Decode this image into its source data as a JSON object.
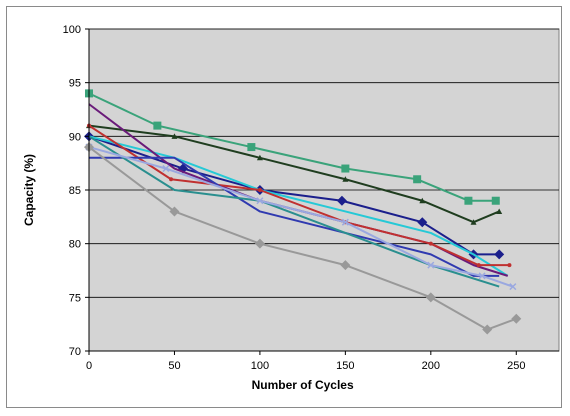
{
  "chart_data": {
    "type": "line",
    "title": "",
    "xlabel": "Number of Cycles",
    "ylabel": "Capacity (%)",
    "xlim": [
      0,
      275
    ],
    "ylim": [
      70,
      100
    ],
    "xticks": [
      0,
      50,
      100,
      150,
      200,
      250
    ],
    "yticks": [
      70,
      75,
      80,
      85,
      90,
      95,
      100
    ],
    "grid": true,
    "legend": "none",
    "plot_background": "#d4d4d4",
    "series": [
      {
        "color": "#3aa37a",
        "marker": "square",
        "points": [
          [
            0,
            94
          ],
          [
            40,
            91
          ],
          [
            95,
            89
          ],
          [
            150,
            87
          ],
          [
            192,
            86
          ],
          [
            222,
            84
          ],
          [
            238,
            84
          ]
        ]
      },
      {
        "color": "#1f3d1f",
        "marker": "triangle",
        "points": [
          [
            0,
            91
          ],
          [
            50,
            90
          ],
          [
            100,
            88
          ],
          [
            150,
            86
          ],
          [
            195,
            84
          ],
          [
            225,
            82
          ],
          [
            240,
            83
          ]
        ]
      },
      {
        "color": "#1b1f8c",
        "marker": "diamond",
        "points": [
          [
            0,
            90
          ],
          [
            55,
            87
          ],
          [
            100,
            85
          ],
          [
            148,
            84
          ],
          [
            195,
            82
          ],
          [
            225,
            79
          ],
          [
            240,
            79
          ]
        ]
      },
      {
        "color": "#26c9d6",
        "marker": "none",
        "points": [
          [
            0,
            90
          ],
          [
            50,
            88
          ],
          [
            100,
            85
          ],
          [
            150,
            83
          ],
          [
            200,
            81
          ],
          [
            225,
            79
          ],
          [
            245,
            77
          ]
        ]
      },
      {
        "color": "#6a1b7a",
        "marker": "none",
        "points": [
          [
            0,
            93
          ],
          [
            50,
            87
          ],
          [
            100,
            84
          ],
          [
            150,
            82
          ],
          [
            200,
            80
          ],
          [
            225,
            78
          ],
          [
            245,
            77
          ]
        ]
      },
      {
        "color": "#c03030",
        "marker": "dot",
        "points": [
          [
            0,
            91
          ],
          [
            48,
            86
          ],
          [
            100,
            85
          ],
          [
            150,
            82
          ],
          [
            200,
            80
          ],
          [
            228,
            78
          ],
          [
            246,
            78
          ]
        ]
      },
      {
        "color": "#303ab0",
        "marker": "none",
        "points": [
          [
            0,
            88
          ],
          [
            50,
            88
          ],
          [
            100,
            83
          ],
          [
            150,
            81
          ],
          [
            200,
            79
          ],
          [
            225,
            77
          ],
          [
            240,
            77
          ]
        ]
      },
      {
        "color": "#2a8f8f",
        "marker": "none",
        "points": [
          [
            0,
            90
          ],
          [
            50,
            85
          ],
          [
            100,
            84
          ],
          [
            150,
            81
          ],
          [
            200,
            78
          ],
          [
            240,
            76
          ]
        ]
      },
      {
        "color": "#9aa8e0",
        "marker": "x",
        "points": [
          [
            0,
            89
          ],
          [
            45,
            87
          ],
          [
            100,
            84
          ],
          [
            150,
            82
          ],
          [
            200,
            78
          ],
          [
            230,
            77
          ],
          [
            248,
            76
          ]
        ]
      },
      {
        "color": "#999999",
        "marker": "diamond",
        "points": [
          [
            0,
            89
          ],
          [
            50,
            83
          ],
          [
            100,
            80
          ],
          [
            150,
            78
          ],
          [
            200,
            75
          ],
          [
            233,
            72
          ],
          [
            250,
            73
          ]
        ]
      }
    ]
  }
}
